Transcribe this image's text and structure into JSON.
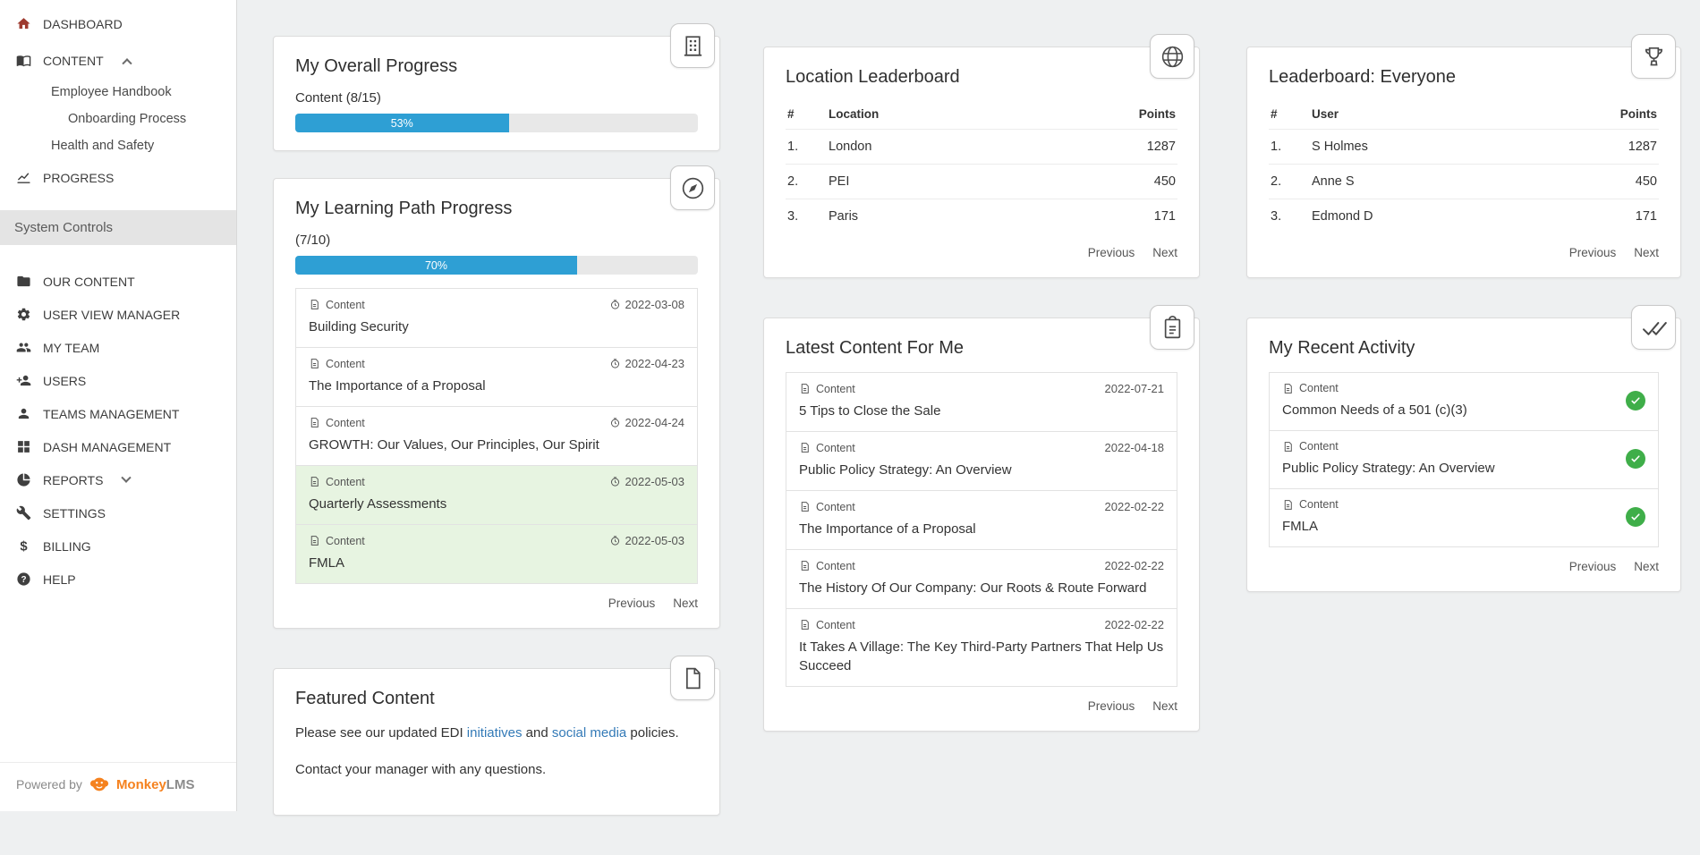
{
  "colors": {
    "accent_blue": "#2e9fd4",
    "link_blue": "#337ab7",
    "success_green": "#3fae49",
    "highlight_green": "#e7f4e1",
    "brand_orange": "#f5821f"
  },
  "glyphs": {
    "content": "doc-small",
    "date": "clock",
    "check": "check"
  },
  "pagination": {
    "previous": "Previous",
    "next": "Next"
  },
  "sidebar": {
    "items": [
      {
        "label": "DASHBOARD",
        "icon": "home"
      },
      {
        "label": "CONTENT",
        "icon": "book",
        "chevron": "up"
      },
      {
        "label": "PROGRESS",
        "icon": "chart"
      }
    ],
    "content_children": [
      {
        "label": "Employee Handbook"
      },
      {
        "label": "Onboarding Process"
      },
      {
        "label": "Health and Safety"
      }
    ],
    "section_label": "System Controls",
    "controls": [
      {
        "label": "OUR CONTENT",
        "icon": "folder"
      },
      {
        "label": "USER VIEW MANAGER",
        "icon": "gear"
      },
      {
        "label": "MY TEAM",
        "icon": "users"
      },
      {
        "label": "USERS",
        "icon": "user-plus"
      },
      {
        "label": "TEAMS MANAGEMENT",
        "icon": "user"
      },
      {
        "label": "DASH MANAGEMENT",
        "icon": "grid"
      },
      {
        "label": "REPORTS",
        "icon": "pie",
        "chevron": "down"
      },
      {
        "label": "SETTINGS",
        "icon": "wrench"
      },
      {
        "label": "BILLING",
        "icon": "dollar"
      },
      {
        "label": "HELP",
        "icon": "question"
      }
    ],
    "footer": {
      "powered_by": "Powered by",
      "brand_monkey": "Monkey",
      "brand_lms": "LMS"
    }
  },
  "overall_progress": {
    "title": "My Overall Progress",
    "icon": "building",
    "label": "Content (8/15)",
    "percent": 53,
    "percent_label": "53%"
  },
  "learning_path": {
    "title": "My Learning Path Progress",
    "icon": "compass",
    "label": "(7/10)",
    "percent": 70,
    "percent_label": "70%",
    "items": [
      {
        "type": "Content",
        "title": "Building Security",
        "date": "2022-03-08",
        "highlighted": false
      },
      {
        "type": "Content",
        "title": "The Importance of a Proposal",
        "date": "2022-04-23",
        "highlighted": false
      },
      {
        "type": "Content",
        "title": "GROWTH: Our Values, Our Principles, Our Spirit",
        "date": "2022-04-24",
        "highlighted": false
      },
      {
        "type": "Content",
        "title": "Quarterly Assessments",
        "date": "2022-05-03",
        "highlighted": true
      },
      {
        "type": "Content",
        "title": "FMLA",
        "date": "2022-05-03",
        "highlighted": true
      }
    ]
  },
  "featured": {
    "title": "Featured Content",
    "icon": "file",
    "line1_pre": "Please see our updated EDI ",
    "link1": "initiatives",
    "line1_mid": " and ",
    "link2": "social media",
    "line1_post": " policies.",
    "line2": "Contact your manager with any questions."
  },
  "location_leaderboard": {
    "title": "Location Leaderboard",
    "icon": "globe",
    "columns": {
      "rank": "#",
      "name": "Location",
      "points": "Points"
    },
    "rows": [
      {
        "rank": "1.",
        "name": "London",
        "points": "1287"
      },
      {
        "rank": "2.",
        "name": "PEI",
        "points": "450"
      },
      {
        "rank": "3.",
        "name": "Paris",
        "points": "171"
      }
    ]
  },
  "latest_content": {
    "title": "Latest Content For Me",
    "icon": "clipboard",
    "items": [
      {
        "type": "Content",
        "title": "5 Tips to Close the Sale",
        "date": "2022-07-21"
      },
      {
        "type": "Content",
        "title": "Public Policy Strategy: An Overview",
        "date": "2022-04-18"
      },
      {
        "type": "Content",
        "title": "The Importance of a Proposal",
        "date": "2022-02-22"
      },
      {
        "type": "Content",
        "title": "The History Of Our Company: Our Roots & Route Forward",
        "date": "2022-02-22"
      },
      {
        "type": "Content",
        "title": "It Takes A Village: The Key Third-Party Partners That Help Us Succeed",
        "date": "2022-02-22"
      }
    ]
  },
  "everyone_leaderboard": {
    "title": "Leaderboard: Everyone",
    "icon": "trophy",
    "columns": {
      "rank": "#",
      "name": "User",
      "points": "Points"
    },
    "rows": [
      {
        "rank": "1.",
        "name": "S Holmes",
        "points": "1287"
      },
      {
        "rank": "2.",
        "name": "Anne S",
        "points": "450"
      },
      {
        "rank": "3.",
        "name": "Edmond D",
        "points": "171"
      }
    ]
  },
  "recent_activity": {
    "title": "My Recent Activity",
    "icon": "double-check",
    "items": [
      {
        "type": "Content",
        "title": "Common Needs of a 501 (c)(3)"
      },
      {
        "type": "Content",
        "title": "Public Policy Strategy: An Overview"
      },
      {
        "type": "Content",
        "title": "FMLA"
      }
    ]
  }
}
